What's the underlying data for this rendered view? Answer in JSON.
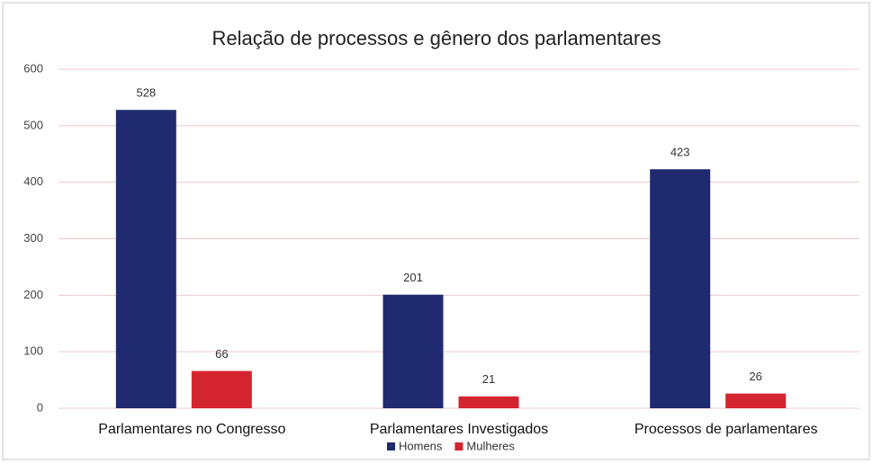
{
  "chart_data": {
    "type": "bar",
    "title": "Relação de processos e gênero dos parlamentares",
    "categories": [
      "Parlamentares no Congresso",
      "Parlamentares Investigados",
      "Processos de parlamentares"
    ],
    "series": [
      {
        "name": "Homens",
        "color": "#1f2b6e",
        "values": [
          528,
          201,
          423
        ]
      },
      {
        "name": "Mulheres",
        "color": "#d42430",
        "values": [
          66,
          21,
          26
        ]
      }
    ],
    "ylim": [
      0,
      600
    ],
    "yticks": [
      0,
      100,
      200,
      300,
      400,
      500,
      600
    ],
    "grid": true,
    "legend": "bottom"
  }
}
